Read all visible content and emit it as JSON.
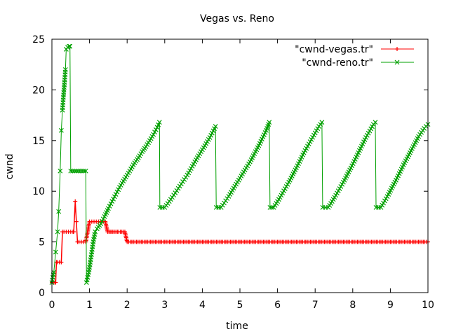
{
  "chart_data": {
    "type": "line",
    "title": "Vegas vs. Reno",
    "xlabel": "time",
    "ylabel": "cwnd",
    "xlim": [
      0,
      10
    ],
    "ylim": [
      0,
      25
    ],
    "xticks": [
      "0",
      "1",
      "2",
      "3",
      "4",
      "5",
      "6",
      "7",
      "8",
      "9",
      "10"
    ],
    "yticks": [
      "0",
      "5",
      "10",
      "15",
      "20",
      "25"
    ],
    "grid": false,
    "legend_position": "top-right",
    "series": [
      {
        "name": "\"cwnd-vegas.tr\"",
        "color": "#ff0000",
        "marker": "plus",
        "points": [
          [
            0.0,
            1
          ],
          [
            0.08,
            1
          ],
          [
            0.1,
            1
          ],
          [
            0.12,
            3
          ],
          [
            0.15,
            3
          ],
          [
            0.2,
            3
          ],
          [
            0.25,
            3
          ],
          [
            0.28,
            6
          ],
          [
            0.32,
            6
          ],
          [
            0.38,
            6
          ],
          [
            0.44,
            6
          ],
          [
            0.5,
            6
          ],
          [
            0.56,
            6
          ],
          [
            0.58,
            6
          ],
          [
            0.62,
            9
          ],
          [
            0.65,
            7
          ],
          [
            0.68,
            5
          ],
          [
            0.72,
            5
          ],
          [
            0.78,
            5
          ],
          [
            0.84,
            5
          ],
          [
            0.9,
            5
          ],
          [
            0.95,
            6
          ],
          [
            1.0,
            7
          ],
          [
            1.06,
            7
          ],
          [
            1.12,
            7
          ],
          [
            1.18,
            7
          ],
          [
            1.24,
            7
          ],
          [
            1.3,
            7
          ],
          [
            1.36,
            7
          ],
          [
            1.42,
            7
          ],
          [
            1.48,
            6
          ],
          [
            1.55,
            6
          ],
          [
            1.62,
            6
          ],
          [
            1.7,
            6
          ],
          [
            1.78,
            6
          ],
          [
            1.86,
            6
          ],
          [
            1.94,
            6
          ],
          [
            2.0,
            5
          ],
          [
            2.5,
            5
          ],
          [
            3.0,
            5
          ],
          [
            3.5,
            5
          ],
          [
            4.0,
            5
          ],
          [
            4.5,
            5
          ],
          [
            5.0,
            5
          ],
          [
            5.5,
            5
          ],
          [
            6.0,
            5
          ],
          [
            6.5,
            5
          ],
          [
            7.0,
            5
          ],
          [
            7.5,
            5
          ],
          [
            8.0,
            5
          ],
          [
            8.5,
            5
          ],
          [
            9.0,
            5
          ],
          [
            9.5,
            5
          ],
          [
            10.0,
            5
          ]
        ]
      },
      {
        "name": "\"cwnd-reno.tr\"",
        "color": "#00a000",
        "marker": "cross",
        "points": [
          [
            0.0,
            1
          ],
          [
            0.05,
            2
          ],
          [
            0.1,
            4
          ],
          [
            0.15,
            6
          ],
          [
            0.18,
            8
          ],
          [
            0.22,
            12
          ],
          [
            0.25,
            16
          ],
          [
            0.28,
            18
          ],
          [
            0.3,
            19
          ],
          [
            0.32,
            20
          ],
          [
            0.34,
            21
          ],
          [
            0.36,
            22
          ],
          [
            0.38,
            24
          ],
          [
            0.42,
            24.2
          ],
          [
            0.46,
            24.3
          ],
          [
            0.48,
            24.3
          ],
          [
            0.5,
            12
          ],
          [
            0.55,
            12
          ],
          [
            0.6,
            12
          ],
          [
            0.65,
            12
          ],
          [
            0.7,
            12
          ],
          [
            0.75,
            12
          ],
          [
            0.8,
            12
          ],
          [
            0.85,
            12
          ],
          [
            0.9,
            12
          ],
          [
            0.92,
            1
          ],
          [
            0.98,
            2
          ],
          [
            1.02,
            3
          ],
          [
            1.06,
            4
          ],
          [
            1.1,
            5
          ],
          [
            1.15,
            6
          ],
          [
            1.2,
            6.3
          ],
          [
            1.3,
            6.8
          ],
          [
            1.4,
            7.5
          ],
          [
            1.5,
            8.3
          ],
          [
            1.6,
            9.0
          ],
          [
            1.7,
            9.7
          ],
          [
            1.8,
            10.4
          ],
          [
            1.9,
            11.0
          ],
          [
            2.0,
            11.6
          ],
          [
            2.1,
            12.2
          ],
          [
            2.2,
            12.8
          ],
          [
            2.3,
            13.3
          ],
          [
            2.4,
            13.9
          ],
          [
            2.5,
            14.4
          ],
          [
            2.6,
            15.0
          ],
          [
            2.7,
            15.6
          ],
          [
            2.8,
            16.3
          ],
          [
            2.86,
            16.8
          ],
          [
            2.87,
            8.4
          ],
          [
            3.0,
            8.4
          ],
          [
            3.2,
            9.4
          ],
          [
            3.4,
            10.5
          ],
          [
            3.6,
            11.6
          ],
          [
            3.8,
            12.9
          ],
          [
            4.0,
            14.1
          ],
          [
            4.2,
            15.3
          ],
          [
            4.35,
            16.4
          ],
          [
            4.37,
            8.4
          ],
          [
            4.5,
            8.4
          ],
          [
            4.7,
            9.5
          ],
          [
            4.9,
            10.7
          ],
          [
            5.1,
            11.9
          ],
          [
            5.3,
            13.1
          ],
          [
            5.5,
            14.5
          ],
          [
            5.7,
            16.0
          ],
          [
            5.78,
            16.8
          ],
          [
            5.8,
            8.4
          ],
          [
            5.9,
            8.4
          ],
          [
            6.1,
            9.6
          ],
          [
            6.3,
            10.9
          ],
          [
            6.5,
            12.3
          ],
          [
            6.7,
            13.8
          ],
          [
            6.9,
            15.1
          ],
          [
            7.1,
            16.4
          ],
          [
            7.18,
            16.8
          ],
          [
            7.2,
            8.4
          ],
          [
            7.35,
            8.4
          ],
          [
            7.55,
            9.6
          ],
          [
            7.75,
            10.9
          ],
          [
            7.95,
            12.3
          ],
          [
            8.15,
            13.8
          ],
          [
            8.35,
            15.3
          ],
          [
            8.55,
            16.6
          ],
          [
            8.6,
            16.8
          ],
          [
            8.62,
            8.4
          ],
          [
            8.75,
            8.4
          ],
          [
            8.95,
            9.7
          ],
          [
            9.15,
            11.1
          ],
          [
            9.35,
            12.6
          ],
          [
            9.55,
            14.0
          ],
          [
            9.75,
            15.4
          ],
          [
            9.9,
            16.2
          ],
          [
            10.0,
            16.6
          ]
        ]
      }
    ]
  }
}
